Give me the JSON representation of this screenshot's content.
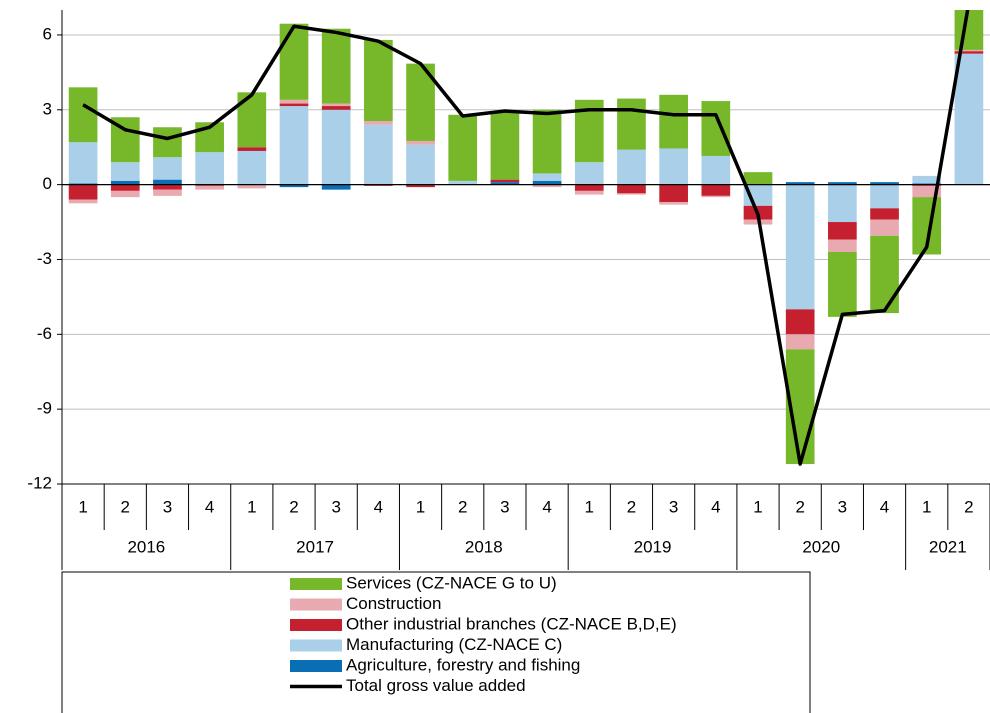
{
  "chart_data": {
    "type": "bar",
    "categories": [
      "1",
      "2",
      "3",
      "4",
      "1",
      "2",
      "3",
      "4",
      "1",
      "2",
      "3",
      "4",
      "1",
      "2",
      "3",
      "4",
      "1",
      "2",
      "3",
      "4",
      "1",
      "2"
    ],
    "groups": [
      "2016",
      "2017",
      "2018",
      "2019",
      "2020",
      "2021"
    ],
    "series": [
      {
        "name": "Services (CZ-NACE G to U)",
        "color": "#76b82a",
        "values": [
          2.2,
          1.8,
          1.2,
          1.2,
          2.2,
          3.05,
          3.0,
          3.25,
          3.1,
          2.65,
          2.75,
          2.55,
          2.5,
          2.05,
          2.15,
          2.2,
          0.5,
          -4.6,
          -2.6,
          -3.1,
          -2.3,
          1.8
        ]
      },
      {
        "name": "Construction",
        "color": "#e8aab0",
        "values": [
          -0.15,
          -0.25,
          -0.25,
          -0.15,
          -0.15,
          0.15,
          0.1,
          0.15,
          0.15,
          0,
          0,
          -0.1,
          -0.15,
          -0.05,
          -0.1,
          -0.05,
          -0.2,
          -0.6,
          -0.5,
          -0.65,
          -0.45,
          0.05
        ]
      },
      {
        "name": "Other industrial branches (CZ-NACE B,D,E)",
        "color": "#c4202f",
        "values": [
          -0.6,
          -0.25,
          -0.2,
          -0.05,
          0.15,
          0.1,
          0.15,
          -0.05,
          -0.1,
          0,
          0.1,
          0,
          -0.25,
          -0.35,
          -0.7,
          -0.45,
          -0.55,
          -1.0,
          -0.7,
          -0.45,
          -0.05,
          0.1
        ]
      },
      {
        "name": "Manufacturing (CZ-NACE C)",
        "color": "#a9cfe9",
        "values": [
          1.65,
          0.75,
          0.9,
          1.3,
          1.35,
          3.15,
          3.0,
          2.4,
          1.6,
          0.15,
          0,
          0.3,
          0.9,
          1.4,
          1.45,
          1.15,
          -0.85,
          -5.0,
          -1.5,
          -0.95,
          0.3,
          5.25
        ]
      },
      {
        "name": "Agriculture, forestry and fishing",
        "color": "#0a6eb4",
        "values": [
          0.05,
          0.15,
          0.2,
          0,
          0,
          -0.1,
          -0.2,
          0,
          0,
          0,
          0.1,
          0.15,
          0,
          0,
          0,
          0,
          0,
          0.1,
          0.1,
          0.1,
          0.05,
          0
        ]
      },
      {
        "name": "Total gross value added",
        "color": "#000000",
        "type": "line",
        "values": [
          3.2,
          2.2,
          1.85,
          2.3,
          3.6,
          6.35,
          6.1,
          5.75,
          4.85,
          2.75,
          2.95,
          2.85,
          3.0,
          3.0,
          2.8,
          2.8,
          -1.2,
          -11.2,
          -5.2,
          -5.05,
          -2.5,
          7.3
        ]
      }
    ],
    "ylim": [
      -12,
      7
    ],
    "yticks": [
      -12,
      -9,
      -6,
      -3,
      0,
      3,
      6
    ],
    "grid": true
  }
}
